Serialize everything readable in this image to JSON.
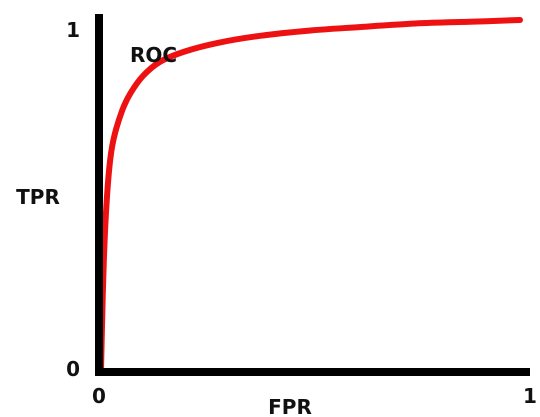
{
  "chart_data": {
    "type": "line",
    "curve_label": "ROC",
    "xlabel": "FPR",
    "ylabel": "TPR",
    "xlim": [
      0,
      1
    ],
    "ylim": [
      0,
      1
    ],
    "x_ticks": [
      "0",
      "1"
    ],
    "y_ticks": [
      "0",
      "1"
    ],
    "grid": false,
    "series": [
      {
        "color": "#ee1111",
        "x": [
          0.0,
          0.003,
          0.007,
          0.012,
          0.02,
          0.03,
          0.05,
          0.07,
          0.1,
          0.14,
          0.2,
          0.28,
          0.38,
          0.5,
          0.62,
          0.75,
          0.88,
          1.0
        ],
        "y": [
          0.0,
          0.16,
          0.32,
          0.45,
          0.58,
          0.66,
          0.74,
          0.79,
          0.84,
          0.88,
          0.91,
          0.935,
          0.955,
          0.97,
          0.98,
          0.99,
          0.995,
          1.0
        ]
      }
    ]
  }
}
